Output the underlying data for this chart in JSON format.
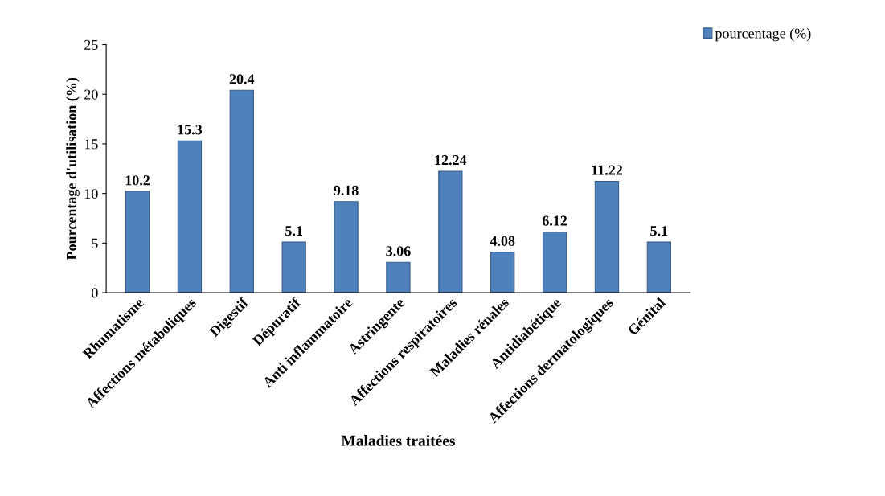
{
  "chart_data": {
    "type": "bar",
    "xlabel": "Maladies traitées",
    "ylabel": "Pourcentage d'utilisation (%)",
    "categories": [
      "Rhumatisme",
      "Affections métaboliques",
      "Digestif",
      "Dépuratif",
      "Anti inflammatoire",
      "Astringente",
      "Affections respiratoires",
      "Maladies rénales",
      "Antidiabétique",
      "Affections dermatologiques",
      "Génital"
    ],
    "series": [
      {
        "name": "pourcentage (%)",
        "color": "#4f81bd",
        "values": [
          10.2,
          15.3,
          20.4,
          5.1,
          9.18,
          3.06,
          12.24,
          4.08,
          6.12,
          11.22,
          5.1
        ]
      }
    ],
    "ylim": [
      0,
      25
    ],
    "yticks": [
      0,
      5,
      10,
      15,
      20,
      25
    ],
    "grid": false,
    "legend": "top right",
    "data_labels": true
  }
}
